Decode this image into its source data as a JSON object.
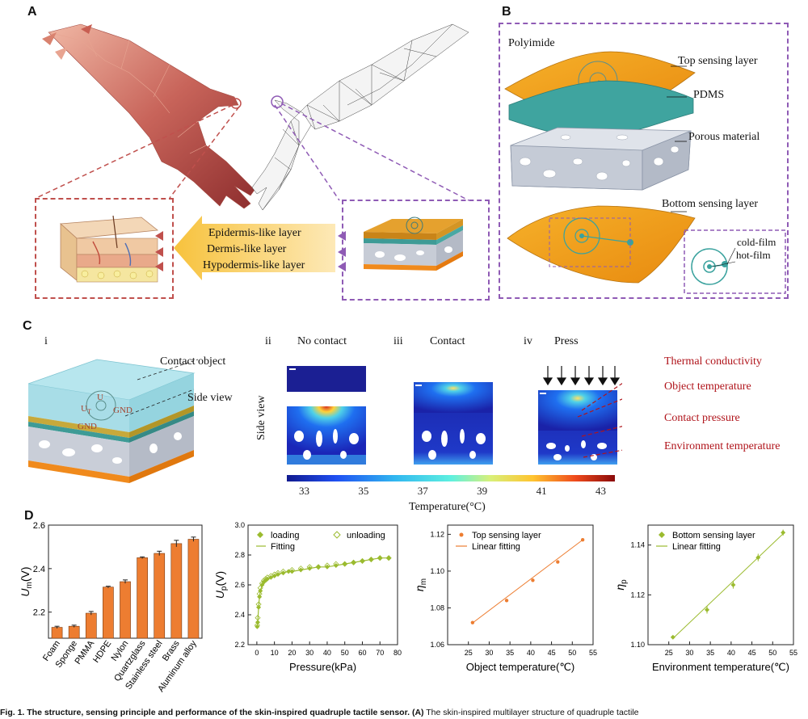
{
  "panel_labels": {
    "a": "A",
    "b": "B",
    "c": "C",
    "d": "D"
  },
  "panel_a": {
    "layers": [
      "Epidermis-like layer",
      "Dermis-like layer",
      "Hypodermis-like layer"
    ]
  },
  "panel_b": {
    "labels": {
      "polyimide": "Polyimide",
      "top_sensing": "Top sensing layer",
      "pdms": "PDMS",
      "porous": "Porous material",
      "bottom_sensing": "Bottom sensing layer",
      "cold_film": "cold-film",
      "hot_film": "hot-film"
    }
  },
  "panel_c": {
    "sub_i": "i",
    "sub_ii": "ii",
    "sub_iii": "iii",
    "sub_iv": "iv",
    "no_contact": "No contact",
    "contact": "Contact",
    "press": "Press",
    "contact_object": "Contact object",
    "side_view_callout": "Side view",
    "side_view_axis": "Side view",
    "ut": "U",
    "ut_sub": "T",
    "u_plus": "U",
    "gnd1": "GND",
    "gnd2": "GND",
    "factors": [
      "Thermal conductivity",
      "Object temperature",
      "Contact pressure",
      "Environment temperature"
    ],
    "colorbar_ticks": [
      "33",
      "35",
      "37",
      "39",
      "41",
      "43"
    ],
    "colorbar_label": "Temperature(°C)"
  },
  "chart_data": [
    {
      "type": "bar",
      "categories": [
        "Foam",
        "Sponge",
        "PMMA",
        "HDPE",
        "Nylon",
        "Quartzglass",
        "Stainless steel",
        "Brass",
        "Aluminum alloy"
      ],
      "values": [
        2.13,
        2.135,
        2.195,
        2.315,
        2.34,
        2.45,
        2.47,
        2.515,
        2.535
      ],
      "errors": [
        0.005,
        0.005,
        0.008,
        0.004,
        0.008,
        0.004,
        0.01,
        0.015,
        0.01
      ],
      "ylabel": "U",
      "ylabel_sub": "m",
      "ylabel_unit": "(V)",
      "ylim": [
        2.08,
        2.6
      ],
      "yticks": [
        "2.2",
        "2.4",
        "2.6"
      ],
      "color": "#ed7d31"
    },
    {
      "type": "scatter",
      "series": [
        {
          "name": "loading",
          "x": [
            0.2,
            0.5,
            1,
            1.5,
            2,
            3,
            4,
            5,
            6,
            8,
            10,
            12,
            15,
            18,
            20,
            25,
            30,
            35,
            40,
            45,
            50,
            55,
            60,
            65,
            70,
            75
          ],
          "y": [
            2.32,
            2.35,
            2.45,
            2.52,
            2.56,
            2.6,
            2.62,
            2.63,
            2.64,
            2.65,
            2.66,
            2.67,
            2.68,
            2.69,
            2.69,
            2.7,
            2.71,
            2.72,
            2.72,
            2.73,
            2.74,
            2.75,
            2.76,
            2.77,
            2.78,
            2.78
          ]
        },
        {
          "name": "unloading",
          "x": [
            75,
            70,
            65,
            60,
            55,
            50,
            45,
            40,
            35,
            30,
            25,
            20,
            15,
            12,
            10,
            8,
            6,
            5,
            4,
            3,
            2,
            1.5,
            1,
            0.5,
            0.2
          ],
          "y": [
            2.78,
            2.78,
            2.77,
            2.76,
            2.75,
            2.74,
            2.74,
            2.73,
            2.72,
            2.72,
            2.71,
            2.7,
            2.69,
            2.68,
            2.67,
            2.66,
            2.65,
            2.64,
            2.63,
            2.61,
            2.58,
            2.54,
            2.47,
            2.38,
            2.33
          ]
        }
      ],
      "fitting": {
        "name": "Fitting"
      },
      "xlabel": "Pressure(kPa)",
      "ylabel": "U",
      "ylabel_sub": "p",
      "ylabel_unit": "(V)",
      "xlim": [
        -5,
        80
      ],
      "ylim": [
        2.2,
        3.0
      ],
      "xticks": [
        "0",
        "10",
        "20",
        "30",
        "40",
        "50",
        "60",
        "70",
        "80"
      ],
      "yticks": [
        "2.2",
        "2.4",
        "2.6",
        "2.8",
        "3.0"
      ],
      "color": "#9bbb2f"
    },
    {
      "type": "scatter",
      "series": [
        {
          "name": "Top sensing layer",
          "x": [
            26,
            34.2,
            40.5,
            46.5,
            52.5
          ],
          "y": [
            1.072,
            1.084,
            1.095,
            1.105,
            1.117
          ]
        }
      ],
      "fit_line": {
        "name": "Linear fitting",
        "x": [
          26,
          52.5
        ],
        "y": [
          1.0718,
          1.117
        ]
      },
      "xlabel": "Object temperature(℃)",
      "ylabel": "η",
      "ylabel_sub": "m",
      "xlim": [
        20,
        55
      ],
      "ylim": [
        1.06,
        1.125
      ],
      "xticks": [
        "25",
        "30",
        "35",
        "40",
        "45",
        "50",
        "55"
      ],
      "yticks": [
        "1.06",
        "1.08",
        "1.10",
        "1.12"
      ],
      "color": "#ed7d31"
    },
    {
      "type": "scatter",
      "series": [
        {
          "name": "Bottom sensing layer",
          "x": [
            26,
            34.2,
            40.5,
            46.5,
            52.5
          ],
          "y": [
            1.103,
            1.114,
            1.124,
            1.135,
            1.145
          ],
          "errors": [
            0,
            0.0015,
            0.0015,
            0.0015,
            0.0012
          ]
        }
      ],
      "fit_line": {
        "name": "Linear fitting",
        "x": [
          26,
          52.5
        ],
        "y": [
          1.1025,
          1.1445
        ]
      },
      "xlabel": "Environment temperature(℃)",
      "ylabel": "η",
      "ylabel_sub": "p",
      "xlim": [
        20,
        55
      ],
      "ylim": [
        1.1,
        1.148
      ],
      "xticks": [
        "25",
        "30",
        "35",
        "40",
        "45",
        "50",
        "55"
      ],
      "yticks": [
        "1.10",
        "1.12",
        "1.14"
      ],
      "color": "#9bbb2f"
    }
  ],
  "caption": {
    "bold": "Fig. 1. The structure, sensing principle and performance of the skin-inspired quadruple tactile sensor.",
    "bold_a": "(A)",
    "rest": "The skin-inspired multilayer structure of quadruple tactile"
  }
}
